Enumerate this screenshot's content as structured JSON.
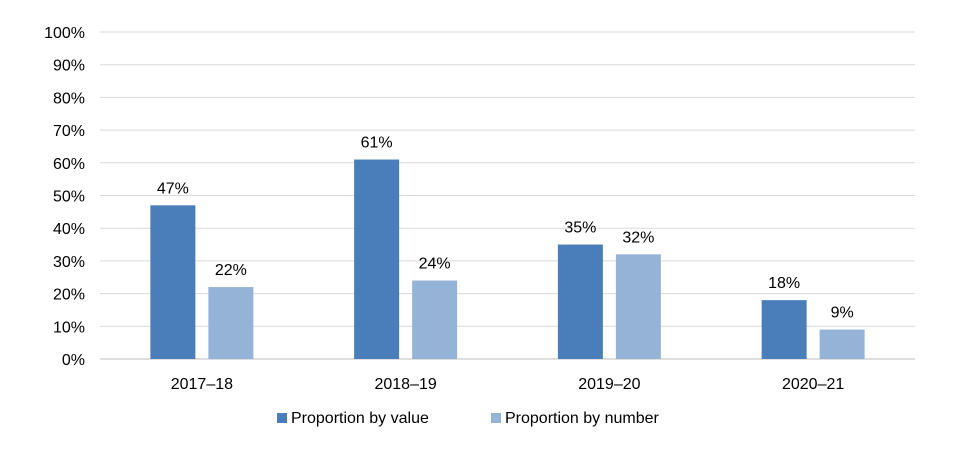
{
  "chart_data": {
    "type": "bar",
    "categories": [
      "2017–18",
      "2018–19",
      "2019–20",
      "2020–21"
    ],
    "series": [
      {
        "name": "Proportion by value",
        "values": [
          47,
          61,
          35,
          18
        ],
        "labels": [
          "47%",
          "61%",
          "35%",
          "18%"
        ],
        "color": "#4a7ebb"
      },
      {
        "name": "Proportion by number",
        "values": [
          22,
          24,
          32,
          9
        ],
        "labels": [
          "22%",
          "24%",
          "32%",
          "9%"
        ],
        "color": "#95b3d7"
      }
    ],
    "y_ticks": [
      "0%",
      "10%",
      "20%",
      "30%",
      "40%",
      "50%",
      "60%",
      "70%",
      "80%",
      "90%",
      "100%"
    ],
    "ylim": [
      0,
      100
    ],
    "grid": true,
    "legend": "bottom-center",
    "title": "",
    "xlabel": "",
    "ylabel": ""
  }
}
